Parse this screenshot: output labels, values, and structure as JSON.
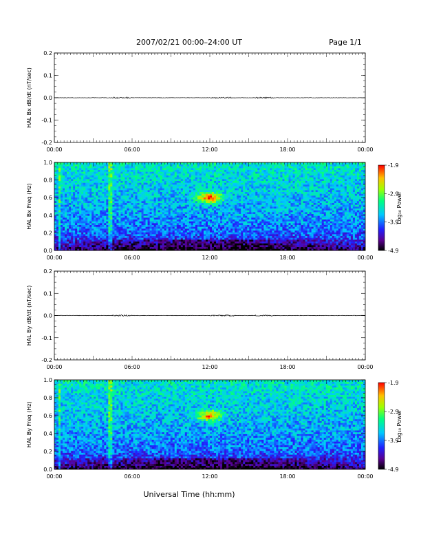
{
  "header": {
    "date_range": "2007/02/21  00:00–24:00 UT",
    "page": "Page 1/1"
  },
  "x_axis_title": "Universal Time (hh:mm)",
  "chart_data": [
    {
      "type": "line",
      "ylabel": "HAL Bx dB/dt (nT/sec)",
      "xlim": [
        "00:00",
        "24:00"
      ],
      "ylim": [
        -0.2,
        0.2
      ],
      "x_ticks": [
        "00:00",
        "06:00",
        "12:00",
        "18:00",
        "00:00"
      ],
      "y_ticks": [
        "0.2",
        "0.1",
        "0.0",
        "-0.1",
        "-0.2"
      ],
      "series": [
        {
          "x": [
            0,
            24
          ],
          "values": [
            0.0,
            0.0
          ]
        }
      ]
    },
    {
      "type": "heatmap",
      "ylabel": "HAL Bx Freq (Hz)",
      "xlim": [
        "00:00",
        "24:00"
      ],
      "ylim": [
        0,
        1.0
      ],
      "x_ticks": [
        "00:00",
        "06:00",
        "12:00",
        "18:00",
        "00:00"
      ],
      "y_ticks": [
        "1.0",
        "0.8",
        "0.6",
        "0.4",
        "0.2",
        "0.0"
      ],
      "colorbar": {
        "label": "Log₁₀ Power",
        "ticks": [
          "-1.9",
          "-2.9",
          "-3.9",
          "-4.9"
        ],
        "range": [
          -4.9,
          -1.9
        ]
      },
      "features": [
        {
          "hour": 12.0,
          "freq": 0.6,
          "log_power": -2.0
        },
        {
          "hour": 14.0,
          "freq": 0.38,
          "log_power": -3.5
        }
      ]
    },
    {
      "type": "line",
      "ylabel": "HAL By dB/dt (nT/sec)",
      "xlim": [
        "00:00",
        "24:00"
      ],
      "ylim": [
        -0.2,
        0.2
      ],
      "x_ticks": [
        "00:00",
        "06:00",
        "12:00",
        "18:00",
        "00:00"
      ],
      "y_ticks": [
        "0.2",
        "0.1",
        "0.0",
        "-0.1",
        "-0.2"
      ],
      "series": [
        {
          "x": [
            0,
            24
          ],
          "values": [
            0.0,
            0.0
          ]
        }
      ]
    },
    {
      "type": "heatmap",
      "ylabel": "HAL By Freq (Hz)",
      "xlim": [
        "00:00",
        "24:00"
      ],
      "ylim": [
        0,
        1.0
      ],
      "x_ticks": [
        "00:00",
        "06:00",
        "12:00",
        "18:00",
        "00:00"
      ],
      "y_ticks": [
        "1.0",
        "0.8",
        "0.6",
        "0.4",
        "0.2",
        "0.0"
      ],
      "colorbar": {
        "label": "Log₁₀ Power",
        "ticks": [
          "-1.9",
          "-2.9",
          "-3.9",
          "-4.9"
        ],
        "range": [
          -4.9,
          -1.9
        ]
      },
      "features": [
        {
          "hour": 12.0,
          "freq": 0.6,
          "log_power": -2.2
        },
        {
          "hour": 14.0,
          "freq": 0.3,
          "log_power": -3.6
        }
      ]
    }
  ]
}
